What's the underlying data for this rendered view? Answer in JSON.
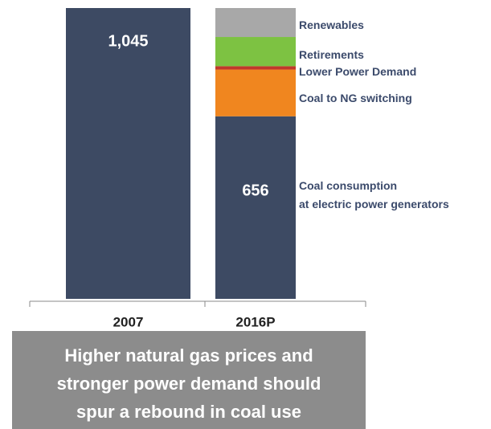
{
  "chart_data": {
    "type": "stacked_bar",
    "categories": [
      "2007",
      "2016P"
    ],
    "series": [
      {
        "name": "Coal consumption\nat electric power generators",
        "color": "#3d4a63",
        "values": [
          1045,
          656
        ],
        "value_labels": [
          "1,045",
          "656"
        ]
      },
      {
        "name": "Coal to NG switching",
        "color": "#f0861f",
        "values": [
          null,
          168
        ]
      },
      {
        "name": "Lower Power Demand",
        "color": "#c0392b",
        "values": [
          null,
          12
        ]
      },
      {
        "name": "Retirements",
        "color": "#7dc242",
        "values": [
          null,
          105
        ]
      },
      {
        "name": "Renewables",
        "color": "#a8a8a8",
        "values": [
          null,
          104
        ]
      }
    ],
    "caption": "Higher natural gas prices and\nstronger power demand should\nspur a rebound in coal use"
  }
}
